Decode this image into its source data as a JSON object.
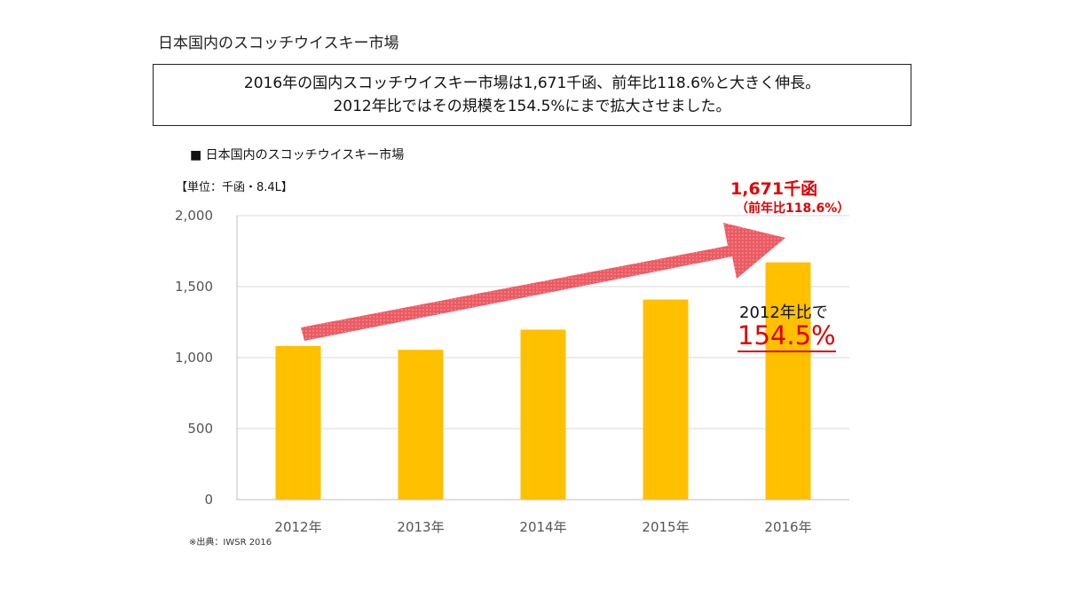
{
  "page": {
    "title": "日本国内のスコッチウイスキー市場",
    "summary_line1": "2016年の国内スコッチウイスキー市場は1,671千函、前年比118.6%と大きく伸長。",
    "summary_line2": "2012年比ではその規模を154.5%にまで拡大させました。",
    "source_note": "※出典：IWSR 2016"
  },
  "chart_data": {
    "type": "bar",
    "title": "■ 日本国内のスコッチウイスキー市場",
    "unit_label": "【単位：千函・8.4L】",
    "categories": [
      "2012年",
      "2013年",
      "2014年",
      "2015年",
      "2016年"
    ],
    "values": [
      1082,
      1055,
      1197,
      1409,
      1671
    ],
    "ylim": [
      0,
      2000
    ],
    "yticks": [
      0,
      500,
      1000,
      1500,
      2000
    ],
    "ytick_labels": [
      "0",
      "500",
      "1,000",
      "1,500",
      "2,000"
    ],
    "grid": true,
    "bar_color": "#ffc000",
    "grid_color": "#d9d9d9",
    "annotations": {
      "callout_main": "1,671千函",
      "callout_sub": "（前年比118.6%）",
      "ratio_label": "2012年比で",
      "ratio_value": "154.5%",
      "accent_color": "#e00000",
      "arrow_color": "#e8565e"
    }
  }
}
